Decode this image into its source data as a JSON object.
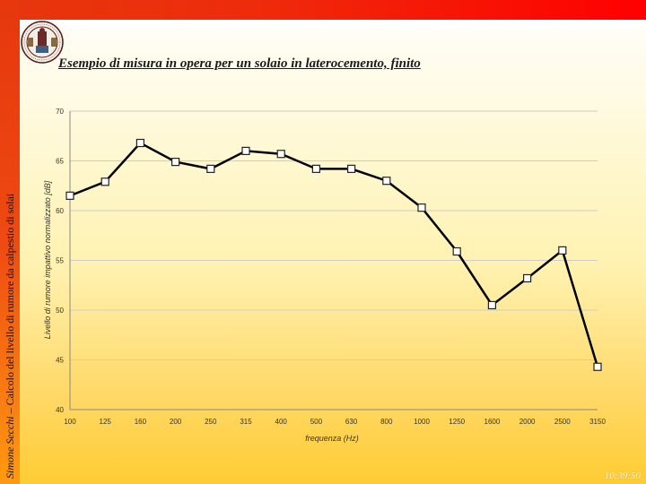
{
  "slide": {
    "title": "Esempio di misura in opera per un solaio in laterocemento, finito",
    "sidebar_author": "Simone Secchi",
    "sidebar_rest": " – Calcolo del livello di rumore da calpestio di solai",
    "clock": "10:39:50",
    "logo": "university-seal"
  },
  "colors": {
    "top_bar": "#ff0000",
    "side_bar": "#e6370d",
    "line": "#000000",
    "marker_fill": "#ffffff",
    "grid": "#cccccc"
  },
  "chart_data": {
    "type": "line",
    "xlabel": "frequenza (Hz)",
    "ylabel": "Livello di rumore impattivo normalizzato [dB]",
    "categories": [
      "100",
      "125",
      "160",
      "200",
      "250",
      "315",
      "400",
      "500",
      "630",
      "800",
      "1000",
      "1250",
      "1600",
      "2000",
      "2500",
      "3150"
    ],
    "yticks": [
      "40",
      "45",
      "50",
      "55",
      "60",
      "65",
      "70"
    ],
    "ylim": [
      40,
      70
    ],
    "grid": true,
    "series": [
      {
        "values": [
          61.5,
          62.9,
          66.8,
          64.9,
          64.2,
          66.0,
          65.7,
          64.2,
          64.2,
          63.0,
          60.3,
          55.9,
          50.5,
          53.2,
          56.0,
          44.3
        ]
      }
    ]
  }
}
